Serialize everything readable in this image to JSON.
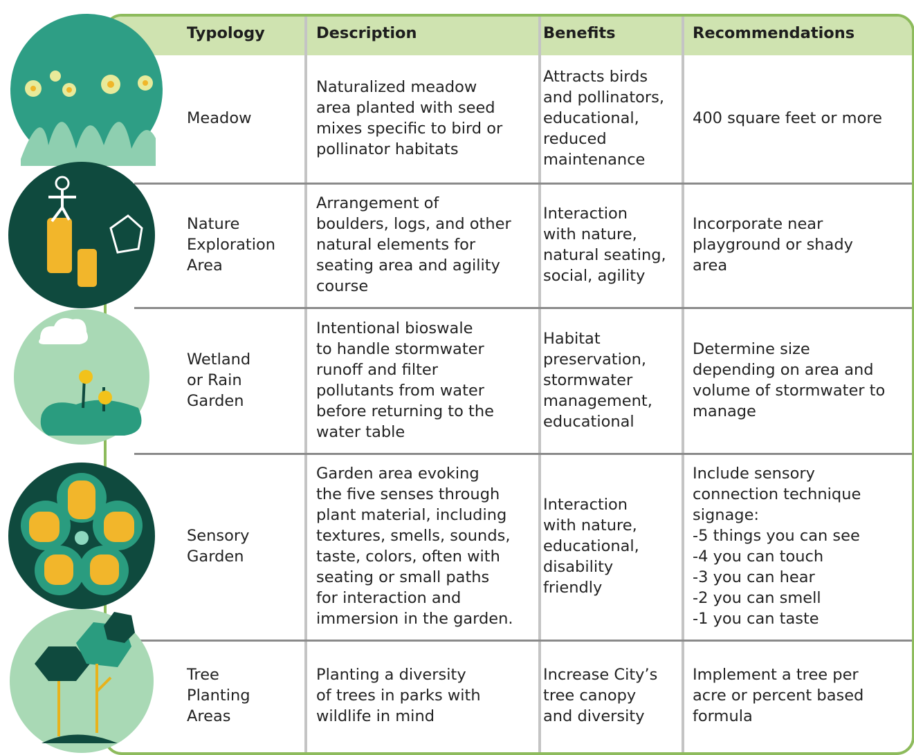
{
  "table": {
    "header": [
      "Typology",
      "Description",
      "Benefits",
      "Recommendations"
    ],
    "rows": [
      [
        [
          "Meadow"
        ],
        [
          "Naturalized meadow",
          "area planted with seed",
          "mixes specific to bird or",
          "pollinator habitats"
        ],
        [
          "Attracts birds",
          "and pollinators,",
          "educational,",
          "reduced",
          "maintenance"
        ],
        [
          "400 square feet or more"
        ]
      ],
      [
        [
          "Nature",
          "Exploration",
          "Area"
        ],
        [
          "Arrangement of",
          "boulders, logs, and other",
          "natural elements for",
          "seating area and agility",
          "course"
        ],
        [
          "Interaction",
          "with nature,",
          "natural seating,",
          "social, agility"
        ],
        [
          "Incorporate near",
          "playground or shady",
          "area"
        ]
      ],
      [
        [
          "Wetland",
          "or Rain",
          "Garden"
        ],
        [
          "Intentional bioswale",
          "to handle stormwater",
          "runoff and filter",
          "pollutants from water",
          "before returning to the",
          "water table"
        ],
        [
          "Habitat",
          "preservation,",
          "stormwater",
          "management,",
          "educational"
        ],
        [
          "Determine size",
          "depending on area and",
          "volume of stormwater to",
          "manage"
        ]
      ],
      [
        [
          "Sensory",
          "Garden"
        ],
        [
          "Garden area evoking",
          "the five senses through",
          "plant material, including",
          "textures, smells, sounds,",
          "taste, colors, often with",
          "seating or small paths",
          "for interaction and",
          "immersion in the garden."
        ],
        [
          "Interaction",
          "with nature,",
          "educational,",
          "disability",
          "friendly"
        ],
        [
          "Include sensory",
          "connection technique",
          "signage:",
          "-5 things you can see",
          "-4 you can touch",
          "-3 you can hear",
          "-2 you can smell",
          "-1 you can taste"
        ]
      ],
      [
        [
          "Tree",
          "Planting",
          "Areas"
        ],
        [
          "Planting a diversity",
          "of trees in parks with",
          "wildlife in mind"
        ],
        [
          "Increase City’s",
          "tree canopy",
          "and diversity"
        ],
        [
          "Implement a tree per",
          "acre or percent based",
          "formula"
        ]
      ]
    ]
  }
}
